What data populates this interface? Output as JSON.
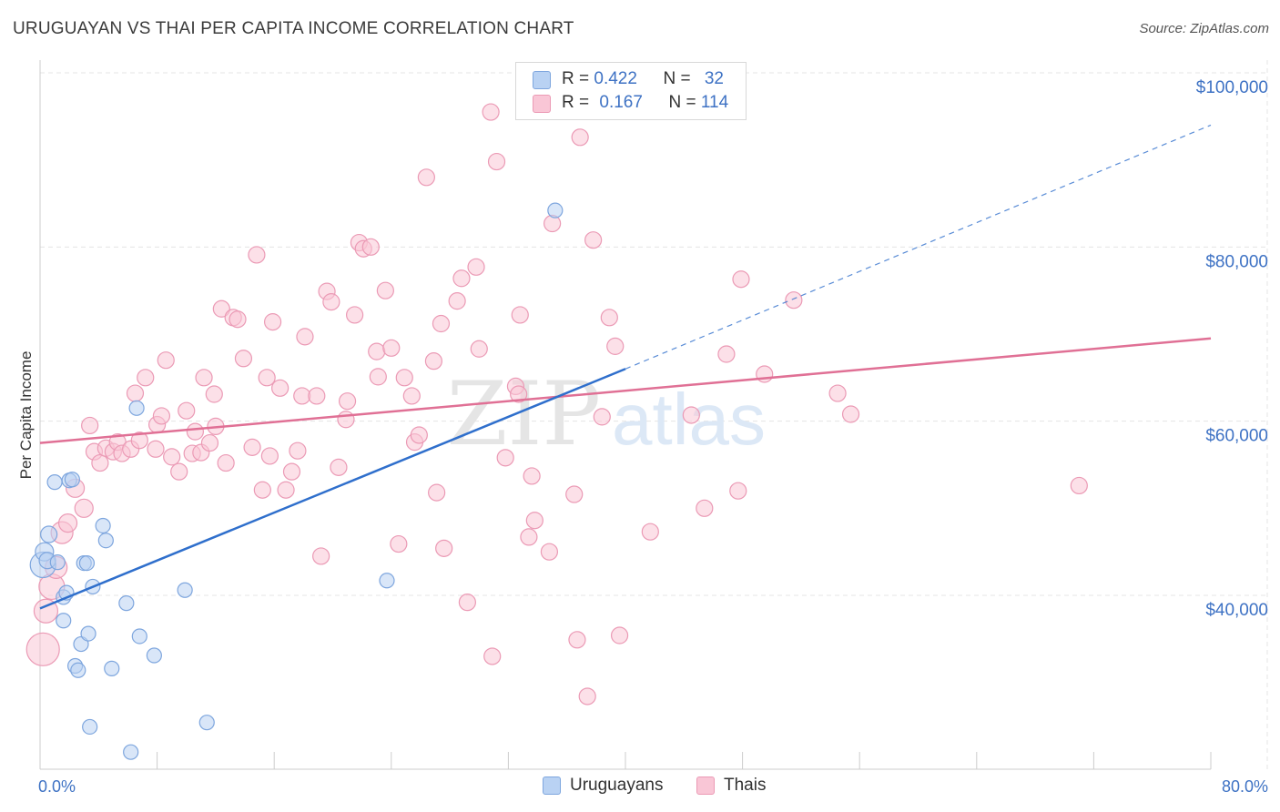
{
  "header": {
    "title": "URUGUAYAN VS THAI PER CAPITA INCOME CORRELATION CHART",
    "source": "Source: ZipAtlas.com"
  },
  "watermark": {
    "zip": "ZIP",
    "atlas": "atlas"
  },
  "legend": {
    "rows": [
      {
        "r_label": "R = ",
        "r_value": "0.422",
        "n_label": "N = ",
        "n_value": "32",
        "fill": "#b9d2f3",
        "stroke": "#7ea6de"
      },
      {
        "r_label": "R = ",
        "r_value": "0.167",
        "n_label": "N = ",
        "n_value": "114",
        "fill": "#f9c6d6",
        "stroke": "#eb9ab5"
      }
    ]
  },
  "bottom_legend": {
    "series1": "Uruguayans",
    "series2": "Thais"
  },
  "chart_data": {
    "type": "scatter",
    "title": "URUGUAYAN VS THAI PER CAPITA INCOME CORRELATION CHART",
    "xlabel": "",
    "ylabel": "Per Capita Income",
    "xlim": [
      0,
      80
    ],
    "ylim": [
      20000,
      102000
    ],
    "x_tick_labels": [
      {
        "value": 0,
        "label": "0.0%"
      },
      {
        "value": 80,
        "label": "80.0%"
      }
    ],
    "y_ticks": [
      {
        "value": 40000,
        "label": "$40,000"
      },
      {
        "value": 60000,
        "label": "$60,000"
      },
      {
        "value": 80000,
        "label": "$80,000"
      },
      {
        "value": 100000,
        "label": "$100,000"
      }
    ],
    "colors": {
      "blue_fill": "#b9d2f3",
      "blue_stroke": "#7ea6de",
      "blue_line": "#2f6fcc",
      "pink_fill": "#f9c6d6",
      "pink_stroke": "#eb9ab5",
      "pink_line": "#e07095",
      "grid": "#e4e4e4",
      "axis": "#cccccc"
    },
    "series": [
      {
        "name": "Uruguayans",
        "R": 0.422,
        "N": 32,
        "trend": {
          "x0": 0,
          "y0": 38500,
          "x1": 40,
          "y1": 66000,
          "dash_to_x": 80,
          "dash_to_y": 94000
        },
        "points": [
          [
            0.2,
            43500,
            14
          ],
          [
            0.3,
            45000,
            10
          ],
          [
            0.5,
            44000,
            9
          ],
          [
            0.6,
            47000,
            9
          ],
          [
            1.0,
            53000,
            8
          ],
          [
            1.2,
            43800,
            8
          ],
          [
            1.6,
            39800,
            8
          ],
          [
            1.6,
            37100,
            8
          ],
          [
            1.8,
            40300,
            8
          ],
          [
            2.0,
            53200,
            8
          ],
          [
            2.2,
            53300,
            8
          ],
          [
            2.4,
            31900,
            8
          ],
          [
            2.6,
            31400,
            8
          ],
          [
            2.8,
            34400,
            8
          ],
          [
            3.0,
            43700,
            8
          ],
          [
            3.2,
            43700,
            8
          ],
          [
            3.3,
            35600,
            8
          ],
          [
            3.4,
            24900,
            8
          ],
          [
            3.6,
            41000,
            8
          ],
          [
            4.3,
            48000,
            8
          ],
          [
            4.5,
            46300,
            8
          ],
          [
            4.9,
            31600,
            8
          ],
          [
            5.9,
            39100,
            8
          ],
          [
            6.2,
            22000,
            8
          ],
          [
            6.6,
            61500,
            8
          ],
          [
            6.8,
            35300,
            8
          ],
          [
            7.8,
            33100,
            8
          ],
          [
            9.9,
            40600,
            8
          ],
          [
            11.4,
            25400,
            8
          ],
          [
            23.7,
            41700,
            8
          ],
          [
            35.2,
            84200,
            8
          ]
        ]
      },
      {
        "name": "Thais",
        "R": 0.167,
        "N": 114,
        "trend": {
          "x0": 0,
          "y0": 57500,
          "x1": 80,
          "y1": 69500
        },
        "points": [
          [
            0.2,
            33800,
            18
          ],
          [
            0.4,
            38200,
            13
          ],
          [
            0.8,
            41000,
            14
          ],
          [
            1.1,
            43200,
            12
          ],
          [
            1.5,
            47200,
            12
          ],
          [
            1.9,
            48300,
            10
          ],
          [
            2.4,
            52300,
            10
          ],
          [
            3.0,
            50000,
            10
          ],
          [
            3.4,
            59500,
            9
          ],
          [
            3.7,
            56500,
            9
          ],
          [
            4.1,
            55200,
            9
          ],
          [
            4.5,
            56900,
            9
          ],
          [
            5.0,
            56500,
            9
          ],
          [
            5.3,
            57600,
            9
          ],
          [
            5.6,
            56300,
            9
          ],
          [
            6.2,
            56800,
            9
          ],
          [
            6.5,
            63200,
            9
          ],
          [
            6.8,
            57800,
            9
          ],
          [
            7.2,
            65000,
            9
          ],
          [
            7.9,
            56800,
            9
          ],
          [
            8.0,
            59600,
            9
          ],
          [
            8.3,
            60600,
            9
          ],
          [
            8.6,
            67000,
            9
          ],
          [
            9.0,
            55900,
            9
          ],
          [
            9.5,
            54200,
            9
          ],
          [
            10.0,
            61200,
            9
          ],
          [
            10.4,
            56300,
            9
          ],
          [
            10.6,
            58800,
            9
          ],
          [
            11.0,
            56400,
            9
          ],
          [
            11.2,
            65000,
            9
          ],
          [
            11.6,
            57500,
            9
          ],
          [
            11.9,
            63100,
            9
          ],
          [
            12.0,
            59400,
            9
          ],
          [
            12.4,
            72900,
            9
          ],
          [
            12.7,
            55200,
            9
          ],
          [
            13.2,
            71900,
            9
          ],
          [
            13.5,
            71700,
            9
          ],
          [
            13.9,
            67200,
            9
          ],
          [
            14.5,
            57000,
            9
          ],
          [
            14.8,
            79100,
            9
          ],
          [
            15.2,
            52100,
            9
          ],
          [
            15.5,
            65000,
            9
          ],
          [
            15.7,
            56000,
            9
          ],
          [
            15.9,
            71400,
            9
          ],
          [
            16.4,
            63800,
            9
          ],
          [
            16.8,
            52100,
            9
          ],
          [
            17.2,
            54200,
            9
          ],
          [
            17.6,
            56600,
            9
          ],
          [
            17.9,
            62900,
            9
          ],
          [
            18.1,
            69700,
            9
          ],
          [
            18.9,
            62900,
            9
          ],
          [
            19.2,
            44500,
            9
          ],
          [
            19.6,
            74900,
            9
          ],
          [
            19.9,
            73700,
            9
          ],
          [
            20.4,
            54700,
            9
          ],
          [
            20.9,
            60200,
            9
          ],
          [
            21.0,
            62300,
            9
          ],
          [
            21.5,
            72200,
            9
          ],
          [
            21.8,
            80500,
            9
          ],
          [
            22.1,
            79800,
            9
          ],
          [
            22.6,
            80000,
            9
          ],
          [
            23.0,
            68000,
            9
          ],
          [
            23.1,
            65100,
            9
          ],
          [
            23.6,
            75000,
            9
          ],
          [
            24.0,
            68400,
            9
          ],
          [
            24.5,
            45900,
            9
          ],
          [
            24.9,
            65000,
            9
          ],
          [
            25.4,
            62900,
            9
          ],
          [
            25.6,
            57600,
            9
          ],
          [
            25.9,
            58400,
            9
          ],
          [
            26.4,
            88000,
            9
          ],
          [
            26.9,
            66900,
            9
          ],
          [
            27.1,
            51800,
            9
          ],
          [
            27.4,
            71200,
            9
          ],
          [
            27.6,
            45400,
            9
          ],
          [
            28.5,
            73800,
            9
          ],
          [
            28.8,
            76400,
            9
          ],
          [
            29.2,
            39200,
            9
          ],
          [
            29.8,
            77700,
            9
          ],
          [
            30.0,
            68300,
            9
          ],
          [
            30.8,
            95500,
            9
          ],
          [
            30.9,
            33000,
            9
          ],
          [
            31.2,
            89800,
            9
          ],
          [
            31.8,
            55800,
            9
          ],
          [
            32.5,
            64000,
            9
          ],
          [
            32.7,
            63100,
            9
          ],
          [
            32.8,
            72200,
            9
          ],
          [
            33.4,
            46700,
            9
          ],
          [
            33.6,
            53700,
            9
          ],
          [
            33.8,
            48600,
            9
          ],
          [
            34.8,
            45000,
            9
          ],
          [
            35.0,
            82700,
            9
          ],
          [
            36.5,
            51600,
            9
          ],
          [
            36.7,
            34900,
            9
          ],
          [
            36.9,
            92600,
            9
          ],
          [
            37.4,
            28400,
            9
          ],
          [
            37.8,
            80800,
            9
          ],
          [
            38.4,
            60500,
            9
          ],
          [
            38.9,
            71900,
            9
          ],
          [
            39.3,
            68600,
            9
          ],
          [
            39.6,
            35400,
            9
          ],
          [
            41.7,
            47300,
            9
          ],
          [
            44.5,
            60700,
            9
          ],
          [
            45.4,
            50000,
            9
          ],
          [
            46.9,
            67700,
            9
          ],
          [
            47.7,
            52000,
            9
          ],
          [
            47.9,
            76300,
            9
          ],
          [
            49.5,
            65400,
            9
          ],
          [
            51.5,
            73900,
            9
          ],
          [
            54.5,
            63200,
            9
          ],
          [
            55.4,
            60800,
            9
          ],
          [
            71.0,
            52600,
            9
          ]
        ]
      }
    ]
  }
}
